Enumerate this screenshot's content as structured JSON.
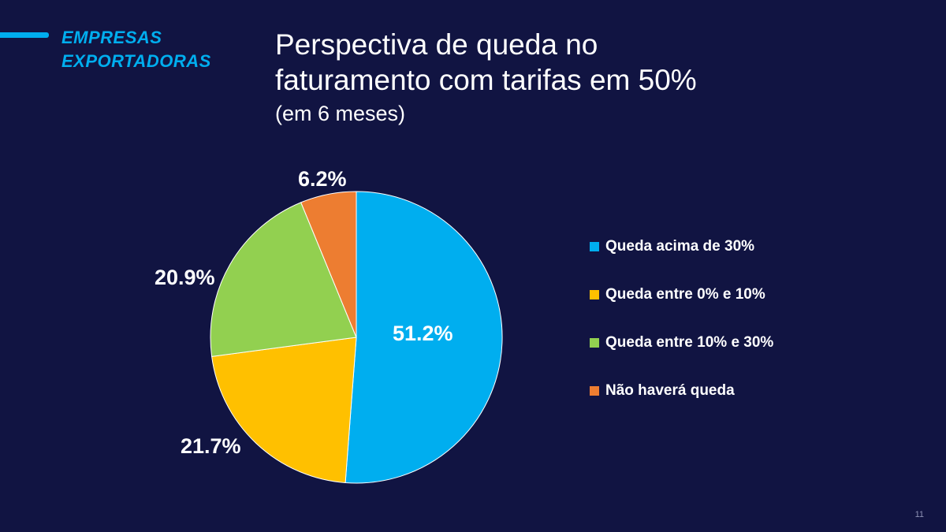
{
  "header": {
    "section_label_lines": [
      "EMPRESAS",
      "EXPORTADORAS"
    ],
    "title_lines": [
      "Perspectiva de queda no",
      "faturamento com tarifas em 50%"
    ],
    "subtitle": "(em 6 meses)",
    "accent_color": "#00AEEF"
  },
  "page_number": "11",
  "chart_data": {
    "type": "pie",
    "title": "Perspectiva de queda no faturamento com tarifas em 50%",
    "subtitle": "(em 6 meses)",
    "legend_position": "right",
    "slices": [
      {
        "label": "Queda acima de 30%",
        "value": 51.2,
        "display": "51.2%",
        "color": "#00AEEF"
      },
      {
        "label": "Queda entre 0% e 10%",
        "value": 21.7,
        "display": "21.7%",
        "color": "#FFC000"
      },
      {
        "label": "Queda entre 10% e 30%",
        "value": 20.9,
        "display": "20.9%",
        "color": "#92D050"
      },
      {
        "label": "Não haverá queda",
        "value": 6.2,
        "display": "6.2%",
        "color": "#ED7D31"
      }
    ]
  }
}
